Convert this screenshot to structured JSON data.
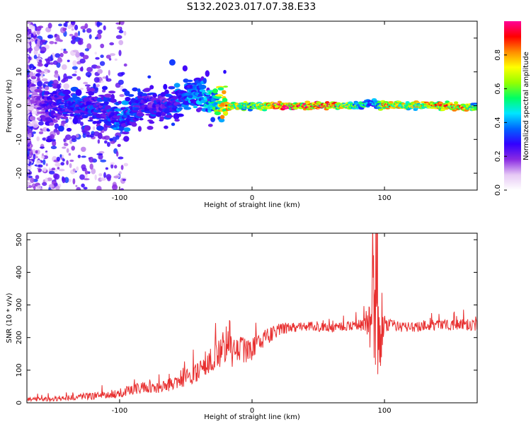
{
  "figure": {
    "title": "S132.2023.017.07.38.E33"
  },
  "chart_data": [
    {
      "type": "heatmap",
      "title": "S132.2023.017.07.38.E33",
      "xlabel": "Height of straight line (km)",
      "ylabel": "Frequency (Hz)",
      "xlim": [
        -170,
        170
      ],
      "ylim": [
        -25,
        25
      ],
      "x_ticks": [
        -100,
        0,
        100
      ],
      "y_ticks": [
        -20,
        -10,
        0,
        10,
        20
      ],
      "x_tick_labels": [
        "-100",
        "0",
        "100"
      ],
      "y_tick_labels": [
        "-20",
        "-10",
        "0",
        "10",
        "20"
      ],
      "colorbar": {
        "label": "Normalized spectral amplitude",
        "range": [
          0.0,
          1.0
        ],
        "ticks": [
          0.0,
          0.2,
          0.4,
          0.6,
          0.8
        ],
        "tick_labels": [
          "0.0",
          "0.2",
          "0.4",
          "0.6",
          "0.8"
        ],
        "colormap": [
          "#ffffff",
          "#e6c8f5",
          "#8a2be2",
          "#3200ff",
          "#0064ff",
          "#00e6ff",
          "#00ff64",
          "#96ff00",
          "#ffff00",
          "#ff8c00",
          "#ff0000",
          "#ff0096"
        ]
      },
      "ridge": {
        "x": [
          -170,
          -150,
          -130,
          -110,
          -100,
          -90,
          -80,
          -70,
          -60,
          -50,
          -40,
          -30,
          -20,
          0,
          20,
          40,
          60,
          80,
          85,
          90,
          95,
          100,
          120,
          140,
          160,
          170
        ],
        "freq": [
          0,
          0.5,
          0,
          -1,
          -4,
          -2,
          1,
          0,
          1,
          3,
          4,
          1,
          0,
          0,
          0,
          0,
          0,
          0,
          0.5,
          1,
          0.5,
          0,
          0,
          0,
          -0.5,
          0
        ],
        "amplitude": [
          0.1,
          0.3,
          0.35,
          0.3,
          0.4,
          0.35,
          0.3,
          0.3,
          0.35,
          0.4,
          0.45,
          0.5,
          0.85,
          0.6,
          0.95,
          0.95,
          0.9,
          0.6,
          0.55,
          0.4,
          0.5,
          0.9,
          0.7,
          0.85,
          0.9,
          0.5
        ]
      }
    },
    {
      "type": "line",
      "xlabel": "Height of straight line (km)",
      "ylabel": "SNR (10 * v/v)",
      "xlim": [
        -170,
        170
      ],
      "ylim": [
        0,
        520
      ],
      "x_ticks": [
        -100,
        0,
        100
      ],
      "y_ticks": [
        0,
        100,
        200,
        300,
        400,
        500
      ],
      "x_tick_labels": [
        "-100",
        "0",
        "100"
      ],
      "y_tick_labels": [
        "0",
        "100",
        "200",
        "300",
        "400",
        "500"
      ],
      "grid": false,
      "series": [
        {
          "color": "#e83030",
          "x": [
            -170,
            -150,
            -130,
            -110,
            -100,
            -90,
            -80,
            -70,
            -60,
            -50,
            -40,
            -30,
            -20,
            -15,
            -10,
            -5,
            0,
            5,
            10,
            20,
            30,
            40,
            60,
            80,
            85,
            90,
            93,
            95,
            97,
            100,
            110,
            120,
            140,
            160,
            170
          ],
          "values": [
            10,
            12,
            18,
            25,
            30,
            40,
            50,
            45,
            60,
            75,
            100,
            140,
            180,
            150,
            165,
            160,
            165,
            175,
            200,
            225,
            230,
            235,
            230,
            240,
            245,
            250,
            300,
            260,
            230,
            240,
            235,
            232,
            238,
            240,
            238
          ],
          "spread": [
            6,
            8,
            10,
            12,
            14,
            16,
            20,
            18,
            22,
            26,
            34,
            44,
            60,
            50,
            44,
            40,
            38,
            34,
            26,
            20,
            16,
            14,
            14,
            16,
            30,
            120,
            200,
            210,
            120,
            24,
            18,
            16,
            16,
            18,
            18
          ]
        }
      ]
    }
  ]
}
